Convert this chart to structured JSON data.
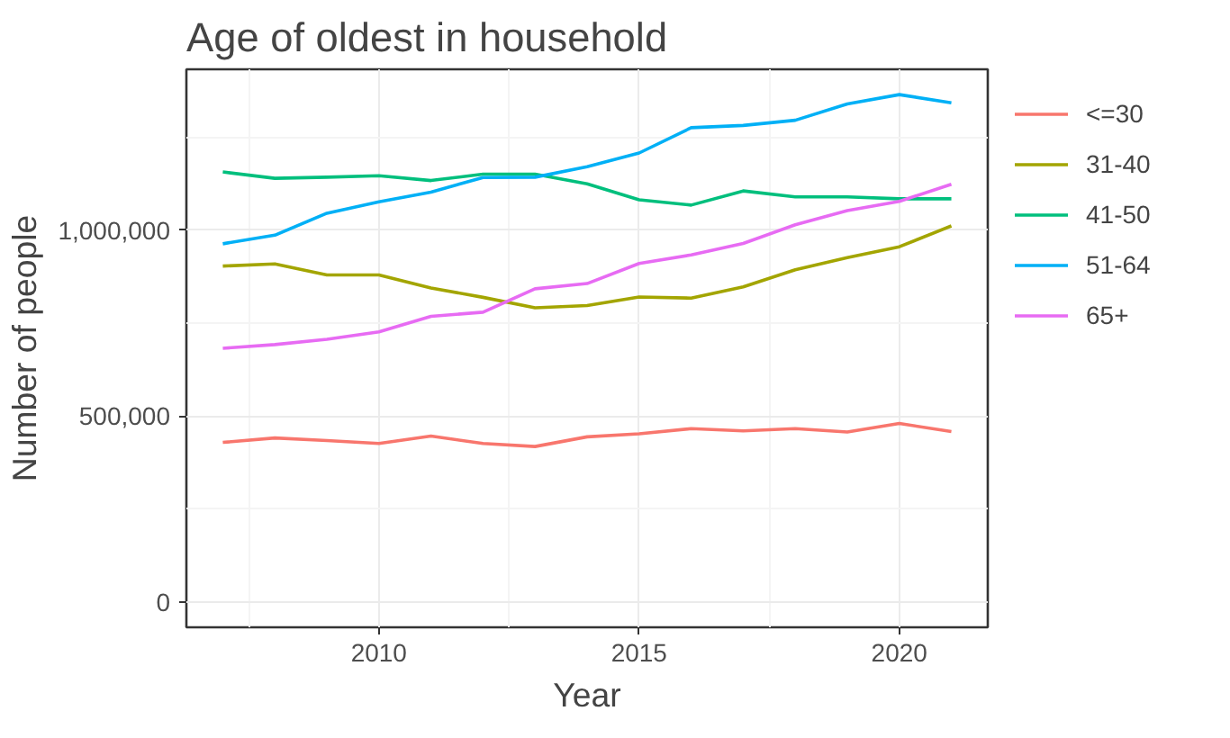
{
  "chart_data": {
    "type": "line",
    "title": "Age of oldest in household",
    "xlabel": "Year",
    "ylabel": "Number of people",
    "x": [
      2007,
      2008,
      2009,
      2010,
      2011,
      2012,
      2013,
      2014,
      2015,
      2016,
      2017,
      2018,
      2019,
      2020,
      2021
    ],
    "series": [
      {
        "name": "<=30",
        "color": "#f8766d",
        "values": [
          429000,
          441000,
          434000,
          426000,
          446000,
          426000,
          418000,
          444000,
          452000,
          466000,
          460000,
          466000,
          457000,
          480000,
          458000
        ]
      },
      {
        "name": "31-40",
        "color": "#a3a500",
        "values": [
          903000,
          909000,
          879000,
          879000,
          844000,
          819000,
          791000,
          797000,
          820000,
          817000,
          847000,
          893000,
          926000,
          955000,
          1011000
        ]
      },
      {
        "name": "41-50",
        "color": "#00bf7d",
        "values": [
          1156000,
          1139000,
          1142000,
          1146000,
          1133000,
          1150000,
          1150000,
          1124000,
          1081000,
          1067000,
          1105000,
          1089000,
          1089000,
          1084000,
          1084000
        ]
      },
      {
        "name": "51-64",
        "color": "#00b0f6",
        "values": [
          963000,
          986000,
          1045000,
          1076000,
          1102000,
          1141000,
          1142000,
          1170000,
          1207000,
          1275000,
          1281000,
          1295000,
          1339000,
          1364000,
          1342000
        ]
      },
      {
        "name": "65+",
        "color": "#e76bf3",
        "values": [
          682000,
          692000,
          706000,
          726000,
          768000,
          779000,
          842000,
          856000,
          910000,
          933000,
          964000,
          1014000,
          1052000,
          1077000,
          1123000
        ]
      }
    ],
    "xlim": [
      2006.3,
      2021.7
    ],
    "ylim": [
      -68000,
      1432000
    ],
    "xticks": [
      2010,
      2015,
      2020
    ],
    "yticks": [
      0,
      {
        "value": 500000,
        "label": "500,000"
      },
      {
        "value": 1000000,
        "label": "1,000,000"
      }
    ],
    "grid": true,
    "legend": "right",
    "marker": "none",
    "line_style": "solid"
  }
}
